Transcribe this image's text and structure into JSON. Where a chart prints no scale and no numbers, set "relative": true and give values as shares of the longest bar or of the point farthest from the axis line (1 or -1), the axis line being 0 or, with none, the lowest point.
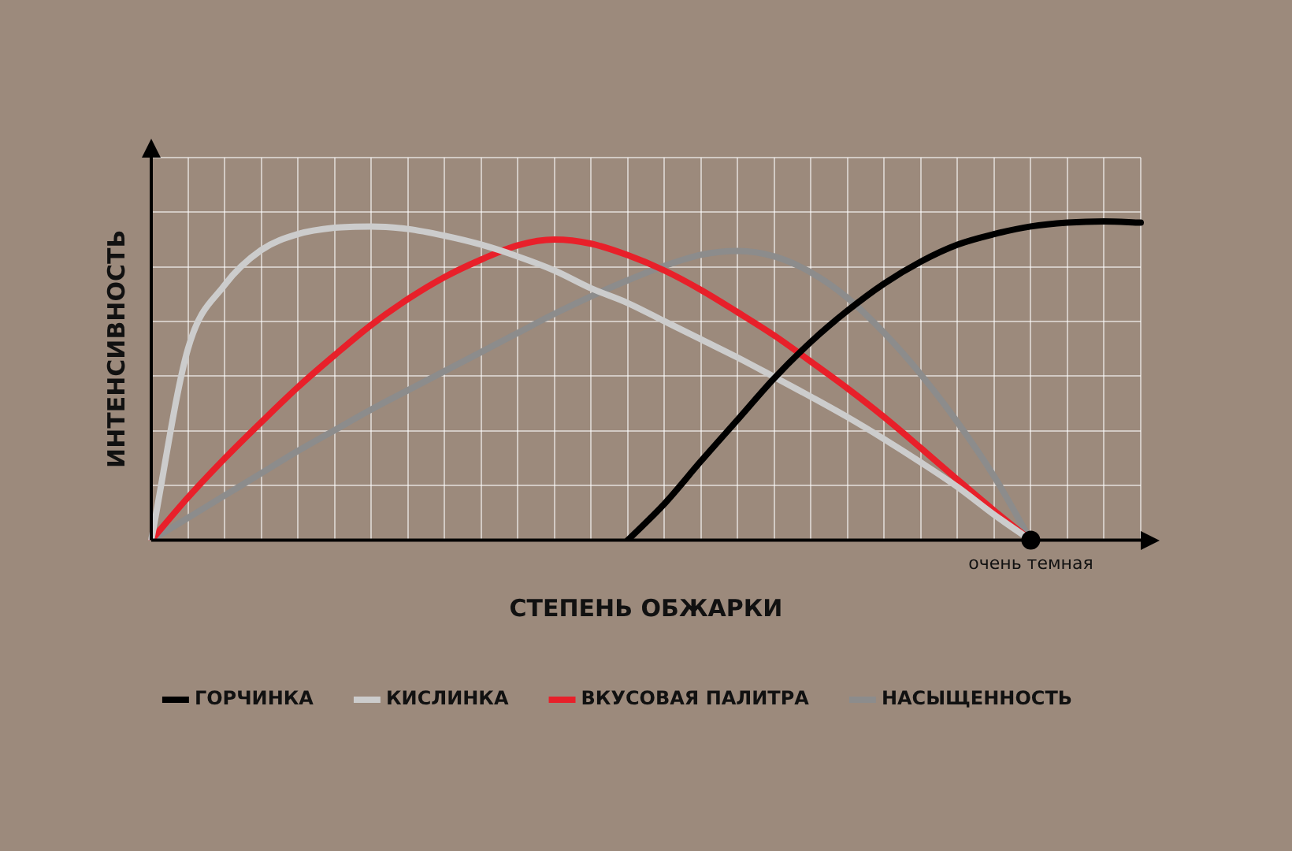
{
  "chart_data": {
    "type": "line",
    "relative": true,
    "xlabel": "СТЕПЕНЬ ОБЖАРКИ",
    "ylabel": "ИНТЕНСИВНОСТЬ",
    "grid": true,
    "legend": "bottom",
    "marker": "none",
    "line_style": "solid",
    "categories": [
      null,
      null,
      null,
      null,
      null,
      null,
      null,
      null,
      null,
      null,
      null,
      null,
      null,
      null,
      null,
      null,
      null,
      null,
      null,
      null,
      null,
      null,
      null,
      null,
      null,
      null,
      null,
      null
    ],
    "annotations": [
      {
        "text": "очень темная",
        "y": 0
      }
    ],
    "series": [
      {
        "name": "ГОРЧИНКА",
        "color": "#000000",
        "values": [
          null,
          null,
          null,
          null,
          null,
          null,
          null,
          null,
          null,
          null,
          null,
          null,
          null,
          0,
          0.114,
          0.248,
          0.378,
          0.508,
          0.622,
          0.72,
          0.805,
          0.874,
          0.927,
          0.96,
          0.984,
          0.996,
          1,
          0.996
        ]
      },
      {
        "name": "КИСЛИНКА",
        "color": "#cccccc",
        "values": [
          0,
          0.6,
          0.8,
          0.91,
          0.96,
          0.98,
          0.984,
          0.976,
          0.955,
          0.927,
          0.89,
          0.846,
          0.79,
          0.744,
          0.687,
          0.63,
          0.573,
          0.512,
          0.45,
          0.386,
          0.317,
          0.244,
          0.167,
          0.08,
          0,
          null,
          null,
          null
        ]
      },
      {
        "name": "ВКУСОВАЯ ПАЛИТРА",
        "color": "#e8202a",
        "values": [
          0,
          0.134,
          0.256,
          0.37,
          0.48,
          0.58,
          0.675,
          0.756,
          0.825,
          0.88,
          0.925,
          0.943,
          0.93,
          0.894,
          0.846,
          0.785,
          0.715,
          0.642,
          0.56,
          0.476,
          0.386,
          0.289,
          0.19,
          0.093,
          0,
          null,
          null,
          null
        ]
      },
      {
        "name": "НАСЫЩЕННОСТЬ",
        "color": "#8c8c8c",
        "values": [
          0,
          0.07,
          0.14,
          0.21,
          0.28,
          0.345,
          0.41,
          0.47,
          0.53,
          0.59,
          0.65,
          0.71,
          0.765,
          0.815,
          0.86,
          0.895,
          0.907,
          0.89,
          0.84,
          0.76,
          0.65,
          0.52,
          0.37,
          0.2,
          0,
          null,
          null,
          null
        ]
      }
    ]
  }
}
